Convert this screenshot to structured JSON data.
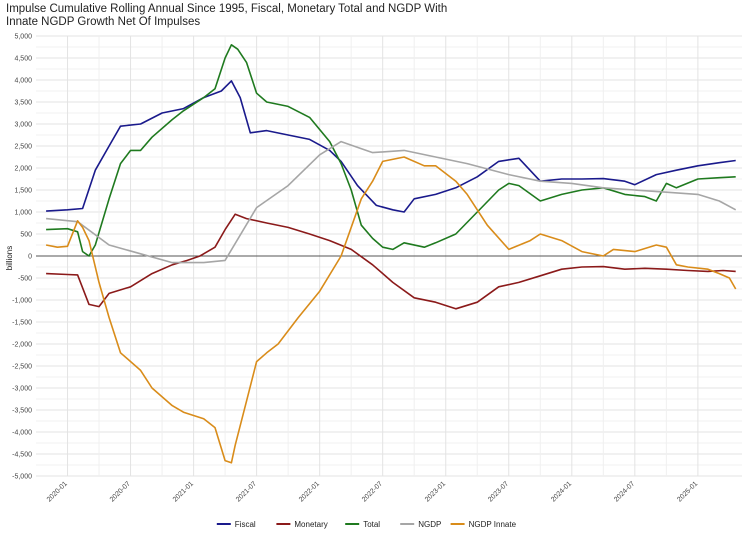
{
  "chart_data": {
    "type": "line",
    "title_lines": [
      "Impulse Cumulative Rolling Annual Since 1995, Fiscal, Monetary Total and NGDP With",
      "Innate NGDP Growth Net Of Impulses"
    ],
    "ylabel": "billions",
    "xlabel": "",
    "ylim": [
      -5000,
      5000
    ],
    "y_ticks": [
      5000,
      4500,
      4000,
      3500,
      3000,
      2500,
      2000,
      1500,
      1000,
      500,
      0,
      -500,
      -1000,
      -1500,
      -2000,
      -2500,
      -3000,
      -3500,
      -4000,
      -4500,
      -5000
    ],
    "y_tick_labels": [
      "5,000",
      "4,500",
      "4,000",
      "3,500",
      "3,000",
      "2,500",
      "2,000",
      "1,500",
      "1,000",
      "500",
      "0",
      "-500",
      "-1,000",
      "-1,500",
      "-2,000",
      "-2,500",
      "-3,000",
      "-3,500",
      "-4,000",
      "-4,500",
      "-5,000"
    ],
    "x_range": [
      2019.75,
      2025.35
    ],
    "x_ticks": [
      2020.0,
      2020.5,
      2021.0,
      2021.5,
      2022.0,
      2022.5,
      2023.0,
      2023.5,
      2024.0,
      2024.5,
      2025.0
    ],
    "x_tick_labels": [
      "2020-01",
      "2020-07",
      "2021-01",
      "2021-07",
      "2022-01",
      "2022-07",
      "2023-01",
      "2023-07",
      "2024-01",
      "2024-07",
      "2025-01"
    ],
    "grid": true,
    "legend_position": "bottom",
    "zero_line": true,
    "series": [
      {
        "name": "Fiscal",
        "color": "#1a1a8c",
        "points": [
          [
            2019.83,
            1020
          ],
          [
            2020.0,
            1050
          ],
          [
            2020.12,
            1080
          ],
          [
            2020.22,
            1950
          ],
          [
            2020.33,
            2500
          ],
          [
            2020.42,
            2950
          ],
          [
            2020.58,
            3000
          ],
          [
            2020.75,
            3250
          ],
          [
            2020.92,
            3350
          ],
          [
            2021.08,
            3600
          ],
          [
            2021.22,
            3750
          ],
          [
            2021.3,
            3980
          ],
          [
            2021.37,
            3600
          ],
          [
            2021.45,
            2800
          ],
          [
            2021.58,
            2850
          ],
          [
            2021.75,
            2750
          ],
          [
            2021.92,
            2650
          ],
          [
            2022.08,
            2400
          ],
          [
            2022.17,
            2150
          ],
          [
            2022.3,
            1600
          ],
          [
            2022.45,
            1150
          ],
          [
            2022.58,
            1050
          ],
          [
            2022.67,
            1000
          ],
          [
            2022.75,
            1300
          ],
          [
            2022.92,
            1400
          ],
          [
            2023.08,
            1550
          ],
          [
            2023.25,
            1800
          ],
          [
            2023.42,
            2150
          ],
          [
            2023.58,
            2220
          ],
          [
            2023.75,
            1700
          ],
          [
            2023.92,
            1750
          ],
          [
            2024.08,
            1750
          ],
          [
            2024.25,
            1760
          ],
          [
            2024.42,
            1700
          ],
          [
            2024.5,
            1620
          ],
          [
            2024.67,
            1850
          ],
          [
            2024.83,
            1950
          ],
          [
            2025.0,
            2050
          ],
          [
            2025.17,
            2120
          ],
          [
            2025.3,
            2170
          ]
        ]
      },
      {
        "name": "Monetary",
        "color": "#8b1a1a",
        "points": [
          [
            2019.83,
            -400
          ],
          [
            2020.0,
            -420
          ],
          [
            2020.08,
            -430
          ],
          [
            2020.17,
            -1100
          ],
          [
            2020.25,
            -1150
          ],
          [
            2020.33,
            -850
          ],
          [
            2020.5,
            -700
          ],
          [
            2020.67,
            -400
          ],
          [
            2020.83,
            -200
          ],
          [
            2020.95,
            -100
          ],
          [
            2021.05,
            0
          ],
          [
            2021.17,
            200
          ],
          [
            2021.25,
            600
          ],
          [
            2021.33,
            950
          ],
          [
            2021.42,
            850
          ],
          [
            2021.58,
            750
          ],
          [
            2021.75,
            650
          ],
          [
            2021.92,
            500
          ],
          [
            2022.08,
            350
          ],
          [
            2022.25,
            150
          ],
          [
            2022.42,
            -200
          ],
          [
            2022.58,
            -600
          ],
          [
            2022.75,
            -950
          ],
          [
            2022.92,
            -1050
          ],
          [
            2023.08,
            -1200
          ],
          [
            2023.25,
            -1050
          ],
          [
            2023.42,
            -700
          ],
          [
            2023.58,
            -600
          ],
          [
            2023.75,
            -450
          ],
          [
            2023.92,
            -300
          ],
          [
            2024.08,
            -250
          ],
          [
            2024.25,
            -240
          ],
          [
            2024.42,
            -300
          ],
          [
            2024.58,
            -280
          ],
          [
            2024.75,
            -300
          ],
          [
            2024.92,
            -330
          ],
          [
            2025.08,
            -350
          ],
          [
            2025.2,
            -330
          ],
          [
            2025.3,
            -350
          ]
        ]
      },
      {
        "name": "Total",
        "color": "#1f7a1f",
        "points": [
          [
            2019.83,
            600
          ],
          [
            2020.0,
            620
          ],
          [
            2020.08,
            550
          ],
          [
            2020.12,
            100
          ],
          [
            2020.17,
            0
          ],
          [
            2020.22,
            250
          ],
          [
            2020.33,
            1300
          ],
          [
            2020.42,
            2100
          ],
          [
            2020.5,
            2400
          ],
          [
            2020.58,
            2400
          ],
          [
            2020.67,
            2700
          ],
          [
            2020.83,
            3100
          ],
          [
            2020.92,
            3300
          ],
          [
            2021.08,
            3600
          ],
          [
            2021.17,
            3800
          ],
          [
            2021.25,
            4500
          ],
          [
            2021.3,
            4800
          ],
          [
            2021.35,
            4700
          ],
          [
            2021.42,
            4400
          ],
          [
            2021.5,
            3700
          ],
          [
            2021.58,
            3500
          ],
          [
            2021.75,
            3400
          ],
          [
            2021.92,
            3150
          ],
          [
            2022.08,
            2600
          ],
          [
            2022.17,
            2100
          ],
          [
            2022.25,
            1500
          ],
          [
            2022.33,
            700
          ],
          [
            2022.42,
            400
          ],
          [
            2022.5,
            200
          ],
          [
            2022.58,
            150
          ],
          [
            2022.67,
            300
          ],
          [
            2022.83,
            200
          ],
          [
            2022.92,
            300
          ],
          [
            2023.08,
            500
          ],
          [
            2023.25,
            1000
          ],
          [
            2023.42,
            1500
          ],
          [
            2023.5,
            1650
          ],
          [
            2023.58,
            1600
          ],
          [
            2023.75,
            1250
          ],
          [
            2023.92,
            1400
          ],
          [
            2024.08,
            1500
          ],
          [
            2024.25,
            1550
          ],
          [
            2024.42,
            1400
          ],
          [
            2024.58,
            1350
          ],
          [
            2024.67,
            1250
          ],
          [
            2024.75,
            1650
          ],
          [
            2024.83,
            1550
          ],
          [
            2025.0,
            1750
          ],
          [
            2025.17,
            1780
          ],
          [
            2025.3,
            1800
          ]
        ]
      },
      {
        "name": "NGDP",
        "color": "#a6a6a6",
        "points": [
          [
            2019.83,
            850
          ],
          [
            2020.08,
            780
          ],
          [
            2020.33,
            250
          ],
          [
            2020.58,
            50
          ],
          [
            2020.83,
            -150
          ],
          [
            2021.08,
            -150
          ],
          [
            2021.25,
            -100
          ],
          [
            2021.5,
            1100
          ],
          [
            2021.75,
            1600
          ],
          [
            2022.0,
            2300
          ],
          [
            2022.17,
            2600
          ],
          [
            2022.42,
            2350
          ],
          [
            2022.67,
            2400
          ],
          [
            2022.92,
            2250
          ],
          [
            2023.17,
            2100
          ],
          [
            2023.5,
            1850
          ],
          [
            2023.75,
            1700
          ],
          [
            2024.0,
            1650
          ],
          [
            2024.25,
            1550
          ],
          [
            2024.5,
            1500
          ],
          [
            2024.75,
            1450
          ],
          [
            2025.0,
            1400
          ],
          [
            2025.17,
            1250
          ],
          [
            2025.3,
            1050
          ]
        ]
      },
      {
        "name": "NGDP Innate",
        "color": "#d98c1a",
        "points": [
          [
            2019.83,
            250
          ],
          [
            2019.92,
            200
          ],
          [
            2020.0,
            220
          ],
          [
            2020.08,
            800
          ],
          [
            2020.12,
            650
          ],
          [
            2020.17,
            350
          ],
          [
            2020.25,
            -600
          ],
          [
            2020.33,
            -1400
          ],
          [
            2020.42,
            -2200
          ],
          [
            2020.58,
            -2600
          ],
          [
            2020.67,
            -3000
          ],
          [
            2020.83,
            -3400
          ],
          [
            2020.92,
            -3550
          ],
          [
            2021.08,
            -3700
          ],
          [
            2021.17,
            -3900
          ],
          [
            2021.25,
            -4650
          ],
          [
            2021.3,
            -4700
          ],
          [
            2021.33,
            -4300
          ],
          [
            2021.42,
            -3300
          ],
          [
            2021.5,
            -2400
          ],
          [
            2021.58,
            -2200
          ],
          [
            2021.67,
            -2000
          ],
          [
            2021.83,
            -1400
          ],
          [
            2022.0,
            -800
          ],
          [
            2022.17,
            0
          ],
          [
            2022.33,
            1300
          ],
          [
            2022.42,
            1700
          ],
          [
            2022.5,
            2150
          ],
          [
            2022.67,
            2250
          ],
          [
            2022.83,
            2050
          ],
          [
            2022.92,
            2050
          ],
          [
            2023.08,
            1700
          ],
          [
            2023.17,
            1400
          ],
          [
            2023.33,
            700
          ],
          [
            2023.5,
            150
          ],
          [
            2023.67,
            350
          ],
          [
            2023.75,
            500
          ],
          [
            2023.92,
            350
          ],
          [
            2024.08,
            100
          ],
          [
            2024.25,
            0
          ],
          [
            2024.33,
            150
          ],
          [
            2024.5,
            100
          ],
          [
            2024.67,
            250
          ],
          [
            2024.75,
            200
          ],
          [
            2024.83,
            -200
          ],
          [
            2024.92,
            -250
          ],
          [
            2025.08,
            -300
          ],
          [
            2025.17,
            -400
          ],
          [
            2025.25,
            -500
          ],
          [
            2025.3,
            -750
          ]
        ]
      }
    ]
  }
}
